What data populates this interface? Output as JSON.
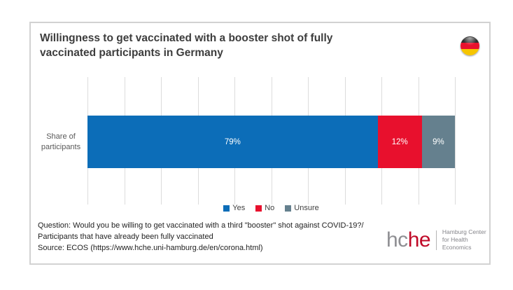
{
  "title": {
    "line1": "Willingness to get vaccinated with a booster shot of fully",
    "line2": "vaccinated participants in Germany"
  },
  "flag_icon": "germany-flag-icon",
  "chart_data": {
    "type": "bar",
    "orientation": "horizontal",
    "stacked": true,
    "title": "Willingness to get vaccinated with a booster shot of fully vaccinated participants in Germany",
    "categories": [
      "Share of participants"
    ],
    "category_label": "Share of participants",
    "series": [
      {
        "name": "Yes",
        "values": [
          79
        ],
        "label": "79%",
        "color": "#0c6db8"
      },
      {
        "name": "No",
        "values": [
          12
        ],
        "label": "12%",
        "color": "#e8102d"
      },
      {
        "name": "Unsure",
        "values": [
          9
        ],
        "label": "9%",
        "color": "#65808e"
      }
    ],
    "xlim": [
      0,
      100
    ],
    "gridline_interval": 10,
    "grid": true,
    "bar_label_color": "#ffffff",
    "legend_position": "bottom"
  },
  "footer": {
    "line1": "Question: Would you be willing to get vaccinated with a third \"booster\" shot against COVID-19?/",
    "line2": "Participants that have already been fully vaccinated",
    "line3": "Source: ECOS (https://www.hche.uni-hamburg.de/en/corona.html)"
  },
  "logo": {
    "part1": "hc",
    "part2": "he",
    "tagline_line1": "Hamburg Center",
    "tagline_line2": "for Health Economics"
  }
}
